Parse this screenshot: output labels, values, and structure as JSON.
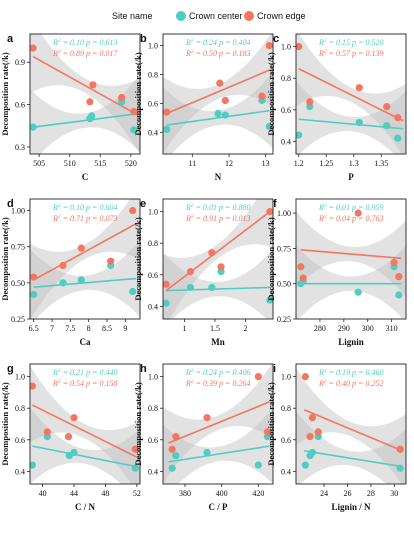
{
  "legend": {
    "title": "Site name",
    "items": [
      {
        "label": "Crown center",
        "color": "#4ecdc4"
      },
      {
        "label": "Crown edge",
        "color": "#f47560"
      }
    ]
  },
  "ylabel": "Decomposition rate(/k)",
  "chart_data": [
    {
      "type": "scatter",
      "panel": "a",
      "xlabel": "C",
      "xlim": [
        503.5,
        521.5
      ],
      "ylim": [
        0.25,
        1.1
      ],
      "xticks": [
        505,
        510,
        515,
        520
      ],
      "yticks": [
        0.3,
        0.6,
        0.9
      ],
      "stats": [
        {
          "r2": "0.10",
          "p": "0.613"
        },
        {
          "r2": "0.89",
          "p": "0.017"
        }
      ],
      "series": [
        {
          "name": "Crown center",
          "points": [
            [
              504.0,
              0.44
            ],
            [
              513.3,
              0.5
            ],
            [
              513.6,
              0.52
            ],
            [
              518.5,
              0.62
            ],
            [
              520.5,
              0.42
            ]
          ],
          "fit": [
            [
              504,
              0.44
            ],
            [
              521,
              0.535
            ]
          ]
        },
        {
          "name": "Crown edge",
          "points": [
            [
              504.0,
              1.0
            ],
            [
              513.3,
              0.62
            ],
            [
              513.8,
              0.74
            ],
            [
              518.5,
              0.65
            ],
            [
              520.5,
              0.55
            ]
          ],
          "fit": [
            [
              504,
              0.94
            ],
            [
              521,
              0.53
            ]
          ]
        }
      ]
    },
    {
      "type": "scatter",
      "panel": "b",
      "xlabel": "N",
      "xlim": [
        10.2,
        13.2
      ],
      "ylim": [
        0.25,
        1.08
      ],
      "xticks": [
        11,
        12,
        13
      ],
      "yticks": [
        0.4,
        0.6,
        0.8,
        1.0
      ],
      "stats": [
        {
          "r2": "0.24",
          "p": "0.404"
        },
        {
          "r2": "0.50",
          "p": "0.183"
        }
      ],
      "series": [
        {
          "name": "Crown center",
          "points": [
            [
              10.3,
              0.42
            ],
            [
              11.7,
              0.53
            ],
            [
              11.9,
              0.52
            ],
            [
              12.9,
              0.62
            ],
            [
              13.1,
              0.44
            ]
          ],
          "fit": [
            [
              10.3,
              0.45
            ],
            [
              13.1,
              0.55
            ]
          ]
        },
        {
          "name": "Crown edge",
          "points": [
            [
              10.3,
              0.54
            ],
            [
              11.75,
              0.74
            ],
            [
              11.9,
              0.62
            ],
            [
              12.9,
              0.65
            ],
            [
              13.1,
              1.0
            ]
          ],
          "fit": [
            [
              10.3,
              0.53
            ],
            [
              13.1,
              0.83
            ]
          ]
        }
      ]
    },
    {
      "type": "scatter",
      "panel": "c",
      "xlabel": "P",
      "xlim": [
        1.195,
        1.395
      ],
      "ylim": [
        0.32,
        1.08
      ],
      "xticks": [
        1.2,
        1.25,
        1.3,
        1.35
      ],
      "yticks": [
        0.4,
        0.6,
        0.8,
        1.0
      ],
      "stats": [
        {
          "r2": "0.15",
          "p": "0.520"
        },
        {
          "r2": "0.57",
          "p": "0.139"
        }
      ],
      "series": [
        {
          "name": "Crown center",
          "points": [
            [
              1.2,
              0.44
            ],
            [
              1.22,
              0.62
            ],
            [
              1.31,
              0.52
            ],
            [
              1.36,
              0.5
            ],
            [
              1.38,
              0.42
            ]
          ],
          "fit": [
            [
              1.2,
              0.54
            ],
            [
              1.39,
              0.48
            ]
          ]
        },
        {
          "name": "Crown edge",
          "points": [
            [
              1.2,
              1.0
            ],
            [
              1.22,
              0.65
            ],
            [
              1.31,
              0.74
            ],
            [
              1.36,
              0.62
            ],
            [
              1.38,
              0.55
            ]
          ],
          "fit": [
            [
              1.2,
              0.86
            ],
            [
              1.39,
              0.53
            ]
          ]
        }
      ]
    },
    {
      "type": "scatter",
      "panel": "d",
      "xlabel": "Ca",
      "xlim": [
        6.4,
        9.4
      ],
      "ylim": [
        0.25,
        1.08
      ],
      "xticks": [
        6.5,
        7.0,
        7.5,
        8.0,
        8.5,
        9.0
      ],
      "yticks": [
        0.25,
        0.5,
        0.75,
        1.0
      ],
      "stats": [
        {
          "r2": "0.10",
          "p": "0.604"
        },
        {
          "r2": "0.71",
          "p": "0.073"
        }
      ],
      "series": [
        {
          "name": "Crown center",
          "points": [
            [
              6.5,
              0.42
            ],
            [
              7.3,
              0.5
            ],
            [
              7.8,
              0.52
            ],
            [
              8.6,
              0.62
            ],
            [
              9.2,
              0.44
            ]
          ],
          "fit": [
            [
              6.5,
              0.47
            ],
            [
              9.3,
              0.53
            ]
          ]
        },
        {
          "name": "Crown edge",
          "points": [
            [
              6.5,
              0.54
            ],
            [
              7.3,
              0.62
            ],
            [
              7.8,
              0.74
            ],
            [
              8.6,
              0.65
            ],
            [
              9.2,
              1.0
            ]
          ],
          "fit": [
            [
              6.5,
              0.52
            ],
            [
              9.3,
              0.91
            ]
          ]
        }
      ]
    },
    {
      "type": "scatter",
      "panel": "e",
      "xlabel": "Mn",
      "xlim": [
        0.65,
        2.45
      ],
      "ylim": [
        0.32,
        1.08
      ],
      "xticks": [
        1.0,
        1.5,
        2.0
      ],
      "yticks": [
        0.4,
        0.6,
        0.8,
        1.0
      ],
      "stats": [
        {
          "r2": "0.01",
          "p": "0.880"
        },
        {
          "r2": "0.91",
          "p": "0.013"
        }
      ],
      "series": [
        {
          "name": "Crown center",
          "points": [
            [
              0.7,
              0.42
            ],
            [
              1.1,
              0.52
            ],
            [
              1.45,
              0.52
            ],
            [
              1.6,
              0.62
            ],
            [
              2.4,
              0.44
            ]
          ],
          "fit": [
            [
              0.7,
              0.5
            ],
            [
              2.4,
              0.52
            ]
          ]
        },
        {
          "name": "Crown edge",
          "points": [
            [
              0.7,
              0.54
            ],
            [
              1.1,
              0.62
            ],
            [
              1.45,
              0.74
            ],
            [
              1.6,
              0.65
            ],
            [
              2.4,
              1.0
            ]
          ],
          "fit": [
            [
              0.7,
              0.5
            ],
            [
              2.4,
              1.0
            ]
          ]
        }
      ]
    },
    {
      "type": "scatter",
      "panel": "f",
      "xlabel": "Lignin",
      "xlim": [
        270,
        316
      ],
      "ylim": [
        0.25,
        1.1
      ],
      "xticks": [
        280,
        290,
        300,
        310
      ],
      "yticks": [
        0.25,
        0.5,
        0.75,
        1.0
      ],
      "stats": [
        {
          "r2": "0.01",
          "p": "0.959"
        },
        {
          "r2": "0.04",
          "p": "0.763"
        }
      ],
      "series": [
        {
          "name": "Crown center",
          "points": [
            [
              272,
              0.5
            ],
            [
              273,
              0.52
            ],
            [
              296,
              0.44
            ],
            [
              311,
              0.62
            ],
            [
              313,
              0.42
            ]
          ],
          "fit": [
            [
              272,
              0.5
            ],
            [
              314,
              0.5
            ]
          ]
        },
        {
          "name": "Crown edge",
          "points": [
            [
              272,
              0.62
            ],
            [
              273,
              0.54
            ],
            [
              296,
              1.0
            ],
            [
              311,
              0.65
            ],
            [
              313,
              0.55
            ]
          ],
          "fit": [
            [
              272,
              0.74
            ],
            [
              314,
              0.68
            ]
          ]
        }
      ]
    },
    {
      "type": "scatter",
      "panel": "g",
      "xlabel": "C / N",
      "xlim": [
        38.4,
        52.4
      ],
      "ylim": [
        0.32,
        1.08
      ],
      "xticks": [
        40,
        44,
        48,
        52
      ],
      "yticks": [
        0.4,
        0.6,
        0.8,
        1.0
      ],
      "stats": [
        {
          "r2": "0.21",
          "p": "0.440"
        },
        {
          "r2": "0.54",
          "p": "0.158"
        }
      ],
      "series": [
        {
          "name": "Crown center",
          "points": [
            [
              38.7,
              0.44
            ],
            [
              40.6,
              0.62
            ],
            [
              43.4,
              0.5
            ],
            [
              44.0,
              0.52
            ],
            [
              51.8,
              0.42
            ]
          ],
          "fit": [
            [
              38.7,
              0.56
            ],
            [
              52,
              0.43
            ]
          ]
        },
        {
          "name": "Crown edge",
          "points": [
            [
              38.7,
              0.94
            ],
            [
              40.6,
              0.65
            ],
            [
              43.3,
              0.62
            ],
            [
              44.0,
              0.74
            ],
            [
              51.8,
              0.54
            ]
          ],
          "fit": [
            [
              38.7,
              0.82
            ],
            [
              52,
              0.49
            ]
          ]
        }
      ]
    },
    {
      "type": "scatter",
      "panel": "h",
      "xlabel": "C / P",
      "xlim": [
        368,
        428
      ],
      "ylim": [
        0.32,
        1.08
      ],
      "xticks": [
        380,
        400,
        420
      ],
      "yticks": [
        0.4,
        0.6,
        0.8,
        1.0
      ],
      "stats": [
        {
          "r2": "0.24",
          "p": "0.406"
        },
        {
          "r2": "0.39",
          "p": "0.264"
        }
      ],
      "series": [
        {
          "name": "Crown center",
          "points": [
            [
              373,
              0.42
            ],
            [
              375,
              0.5
            ],
            [
              392,
              0.52
            ],
            [
              420,
              0.44
            ],
            [
              425,
              0.62
            ]
          ],
          "fit": [
            [
              371,
              0.46
            ],
            [
              426,
              0.56
            ]
          ]
        },
        {
          "name": "Crown edge",
          "points": [
            [
              373,
              0.54
            ],
            [
              375,
              0.62
            ],
            [
              392,
              0.74
            ],
            [
              420,
              1.0
            ],
            [
              425,
              0.65
            ]
          ],
          "fit": [
            [
              371,
              0.58
            ],
            [
              426,
              0.84
            ]
          ]
        }
      ]
    },
    {
      "type": "scatter",
      "panel": "i",
      "xlabel": "Lignin / N",
      "xlim": [
        21.6,
        31.0
      ],
      "ylim": [
        0.32,
        1.08
      ],
      "xticks": [
        24,
        26,
        28,
        30
      ],
      "yticks": [
        0.4,
        0.6,
        0.8,
        1.0
      ],
      "stats": [
        {
          "r2": "0.19",
          "p": "0.460"
        },
        {
          "r2": "0.40",
          "p": "0.252"
        }
      ],
      "series": [
        {
          "name": "Crown center",
          "points": [
            [
              22.4,
              0.44
            ],
            [
              22.8,
              0.5
            ],
            [
              23.0,
              0.52
            ],
            [
              23.5,
              0.62
            ],
            [
              30.5,
              0.42
            ]
          ],
          "fit": [
            [
              22.3,
              0.53
            ],
            [
              30.7,
              0.43
            ]
          ]
        },
        {
          "name": "Crown edge",
          "points": [
            [
              22.4,
              1.0
            ],
            [
              22.8,
              0.62
            ],
            [
              23.0,
              0.74
            ],
            [
              23.5,
              0.65
            ],
            [
              30.5,
              0.54
            ]
          ],
          "fit": [
            [
              22.3,
              0.79
            ],
            [
              30.7,
              0.53
            ]
          ]
        }
      ]
    }
  ]
}
